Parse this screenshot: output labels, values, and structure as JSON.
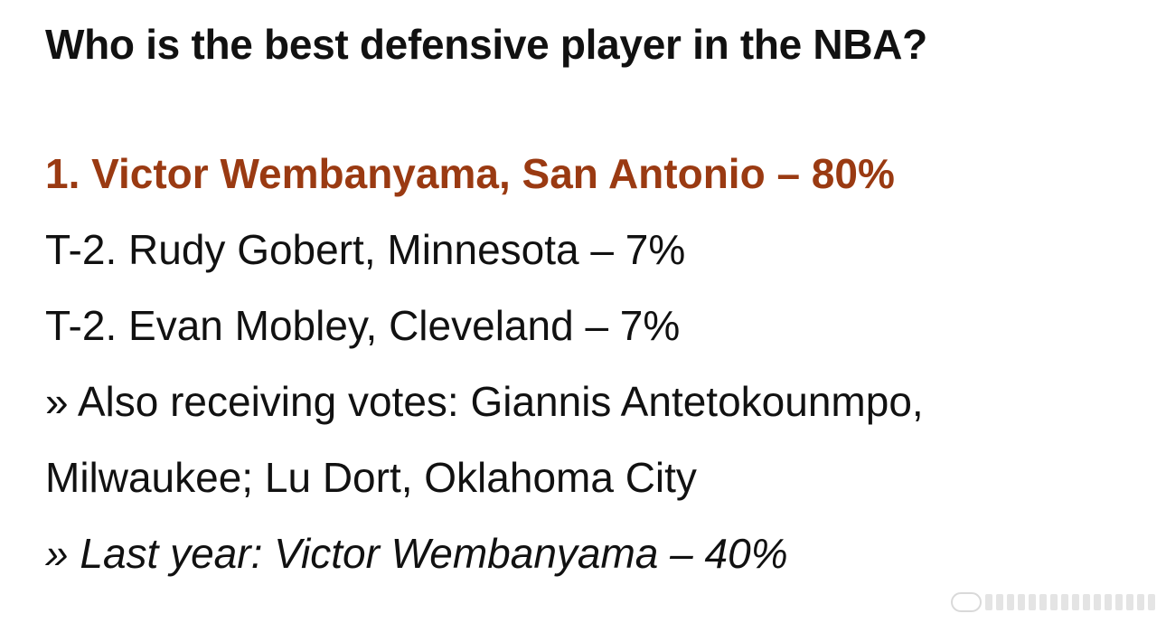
{
  "question": "Who is the best defensive player in the NBA?",
  "results": [
    {
      "text": "1. Victor Wembanyama, San Antonio – 80%",
      "highlight": true
    },
    {
      "text": "T-2. Rudy Gobert, Minnesota – 7%"
    },
    {
      "text": "T-2. Evan Mobley, Cleveland – 7%"
    }
  ],
  "also_receiving": "» Also receiving votes: Giannis Antetokounmpo, Milwaukee; Lu Dort, Oklahoma City",
  "last_year": "» Last year: Victor Wembanyama – 40%",
  "colors": {
    "highlight": "#9a3a12",
    "text": "#111111"
  }
}
